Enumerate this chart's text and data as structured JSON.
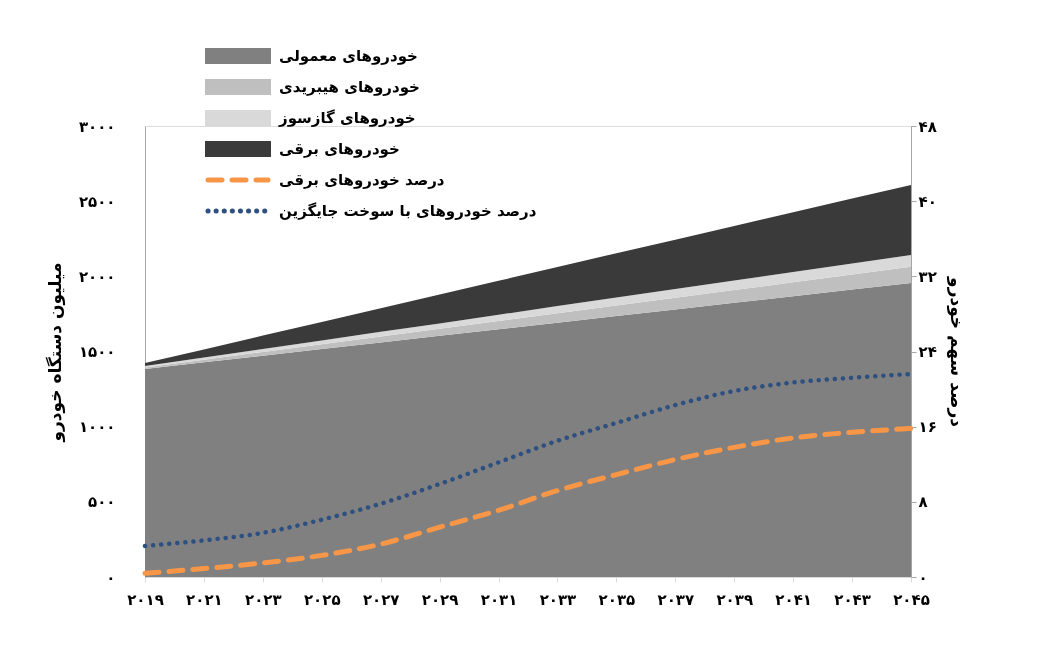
{
  "chart_data": {
    "type": "area",
    "stacked": true,
    "ylabel": "میلیون دستگاه خودرو",
    "y2label": "درصد سهم خودرو",
    "x": [
      2019,
      2021,
      2023,
      2025,
      2027,
      2029,
      2031,
      2033,
      2035,
      2037,
      2039,
      2041,
      2043,
      2045
    ],
    "xlim": [
      2019,
      2045
    ],
    "xticks": [
      {
        "value": 2019,
        "label": "۲۰۱۹"
      },
      {
        "value": 2021,
        "label": "۲۰۲۱"
      },
      {
        "value": 2023,
        "label": "۲۰۲۳"
      },
      {
        "value": 2025,
        "label": "۲۰۲۵"
      },
      {
        "value": 2027,
        "label": "۲۰۲۷"
      },
      {
        "value": 2029,
        "label": "۲۰۲۹"
      },
      {
        "value": 2031,
        "label": "۲۰۳۱"
      },
      {
        "value": 2033,
        "label": "۲۰۳۳"
      },
      {
        "value": 2035,
        "label": "۲۰۳۵"
      },
      {
        "value": 2037,
        "label": "۲۰۳۷"
      },
      {
        "value": 2039,
        "label": "۲۰۳۹"
      },
      {
        "value": 2041,
        "label": "۲۰۴۱"
      },
      {
        "value": 2043,
        "label": "۲۰۴۳"
      },
      {
        "value": 2045,
        "label": "۲۰۴۵"
      }
    ],
    "ylim": [
      0,
      3000
    ],
    "yticks": [
      {
        "value": 0,
        "label": "۰"
      },
      {
        "value": 500,
        "label": "۵۰۰"
      },
      {
        "value": 1000,
        "label": "۱۰۰۰"
      },
      {
        "value": 1500,
        "label": "۱۵۰۰"
      },
      {
        "value": 2000,
        "label": "۲۰۰۰"
      },
      {
        "value": 2500,
        "label": "۲۵۰۰"
      },
      {
        "value": 3000,
        "label": "۳۰۰۰"
      }
    ],
    "y2lim": [
      0,
      48
    ],
    "y2ticks": [
      {
        "value": 0,
        "label": "۰"
      },
      {
        "value": 8,
        "label": "۸"
      },
      {
        "value": 16,
        "label": "۱۶"
      },
      {
        "value": 24,
        "label": "۲۴"
      },
      {
        "value": 32,
        "label": "۳۲"
      },
      {
        "value": 40,
        "label": "۴۰"
      },
      {
        "value": 48,
        "label": "۴۸"
      }
    ],
    "series": [
      {
        "name": "خودروهای معمولی",
        "color": "#808080",
        "values": [
          1384,
          1428,
          1472,
          1516,
          1560,
          1604,
          1648,
          1692,
          1736,
          1780,
          1824,
          1868,
          1912,
          1956
        ]
      },
      {
        "name": "خودروهای هیبریدی",
        "color": "#bfbfbf",
        "values": [
          10,
          17,
          25,
          32,
          40,
          47,
          55,
          62,
          70,
          77,
          85,
          92,
          100,
          107
        ]
      },
      {
        "name": "خودروهای گازسوز",
        "color": "#d9d9d9",
        "values": [
          10,
          15,
          20,
          25,
          31,
          36,
          41,
          48,
          53,
          58,
          63,
          68,
          74,
          79
        ]
      },
      {
        "name": "خودروهای برقی",
        "color": "#3a3a3a",
        "values": [
          20,
          54,
          89,
          123,
          157,
          192,
          226,
          260,
          295,
          329,
          363,
          398,
          432,
          466
        ]
      },
      {
        "name": "درصد خودروهای برقی",
        "type": "line",
        "axis": "y2",
        "color": "#f79646",
        "line_style": "dashed",
        "values": [
          0.4,
          0.9,
          1.5,
          2.3,
          3.5,
          5.3,
          7.1,
          9.2,
          10.9,
          12.5,
          13.8,
          14.8,
          15.4,
          15.8
        ]
      },
      {
        "name": "درصد خودروهای با سوخت جایگزین",
        "type": "line",
        "axis": "y2",
        "color": "#2e5080",
        "line_style": "dotted",
        "values": [
          3.3,
          3.9,
          4.7,
          6.1,
          7.8,
          9.9,
          12.2,
          14.5,
          16.4,
          18.3,
          19.8,
          20.7,
          21.2,
          21.6
        ]
      }
    ],
    "legend": "top left",
    "grid": false
  }
}
